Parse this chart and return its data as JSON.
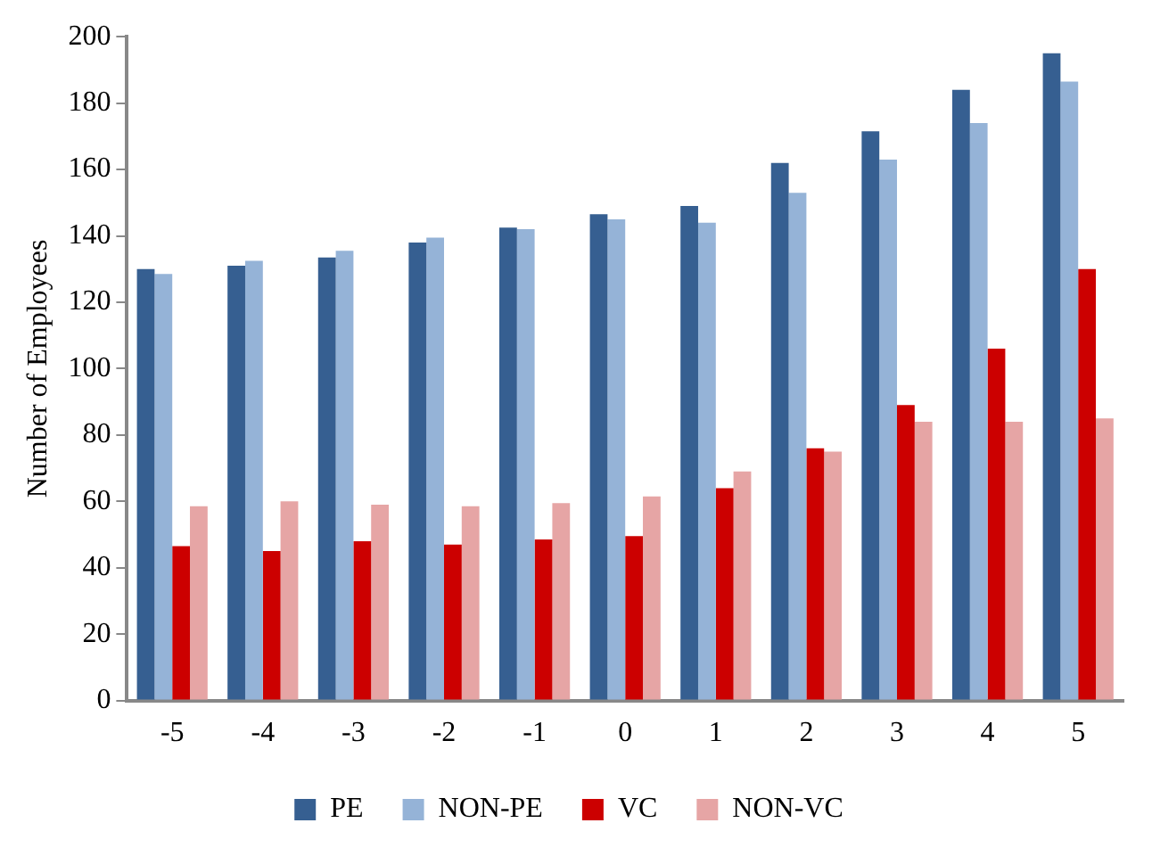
{
  "chart_data": {
    "type": "bar",
    "ylabel": "Number of Employees",
    "categories": [
      "-5",
      "-4",
      "-3",
      "-2",
      "-1",
      "0",
      "1",
      "2",
      "3",
      "4",
      "5"
    ],
    "series": [
      {
        "name": "PE",
        "color": "#365f91",
        "values": [
          130,
          131,
          133.5,
          138,
          142.5,
          146.5,
          149,
          162,
          171.5,
          184,
          195
        ]
      },
      {
        "name": "NON-PE",
        "color": "#95b3d7",
        "values": [
          128.5,
          132.5,
          135.5,
          139.5,
          142,
          145,
          144,
          153,
          163,
          174,
          186.5
        ]
      },
      {
        "name": "VC",
        "color": "#cc0000",
        "values": [
          46.5,
          45,
          48,
          47,
          48.5,
          49.5,
          64,
          76,
          89,
          106,
          130
        ]
      },
      {
        "name": "NON-VC",
        "color": "#e6a5a5",
        "values": [
          58.5,
          60,
          59,
          58.5,
          59.5,
          61.5,
          69,
          75,
          84,
          84,
          85
        ]
      }
    ],
    "ylim": [
      0,
      200
    ],
    "yticks": [
      0,
      20,
      40,
      60,
      80,
      100,
      120,
      140,
      160,
      180,
      200
    ],
    "grid": false,
    "legend": "bottom"
  }
}
